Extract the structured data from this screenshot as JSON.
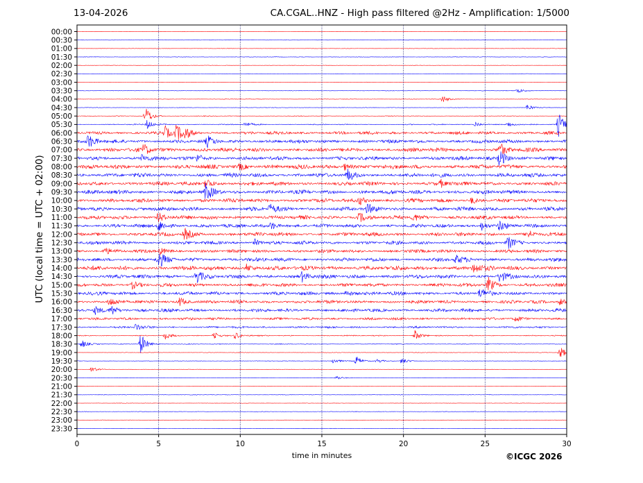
{
  "header": {
    "date": "13-04-2026",
    "title": "CA.CGAL..HNZ - High pass filtered @2Hz - Amplification: 1/5000"
  },
  "footer": {
    "copyright": "©ICGC 2026"
  },
  "chart_data": {
    "type": "line",
    "xlabel": "time in minutes",
    "ylabel": "UTC (local time = UTC + 02:00)",
    "xlim": [
      0,
      30
    ],
    "xticks": [
      "0",
      "5",
      "10",
      "15",
      "20",
      "25",
      "30"
    ],
    "grid": "vertical dotted lines at 5-minute ticks",
    "row_labels": [
      "00:00",
      "00:30",
      "01:00",
      "01:30",
      "02:00",
      "02:30",
      "03:00",
      "03:30",
      "04:00",
      "04:30",
      "05:00",
      "05:30",
      "06:00",
      "06:30",
      "07:00",
      "07:30",
      "08:00",
      "08:30",
      "09:00",
      "09:30",
      "10:00",
      "10:30",
      "11:00",
      "11:30",
      "12:00",
      "12:30",
      "13:00",
      "13:30",
      "14:00",
      "14:30",
      "15:00",
      "15:30",
      "16:00",
      "16:30",
      "17:00",
      "17:30",
      "18:00",
      "18:30",
      "19:00",
      "19:30",
      "20:00",
      "20:30",
      "21:00",
      "21:30",
      "22:00",
      "22:30",
      "23:00",
      "23:30"
    ],
    "trace_colors": [
      "#ff0000",
      "#0000ff"
    ],
    "noise_level": [
      0.3,
      0.3,
      0.3,
      0.4,
      0.3,
      0.3,
      0.3,
      0.4,
      0.4,
      0.4,
      0.5,
      0.8,
      2.5,
      2.8,
      3.2,
      3.0,
      3.4,
      3.2,
      3.0,
      3.2,
      3.0,
      3.2,
      3.0,
      2.8,
      3.0,
      2.8,
      2.6,
      3.0,
      3.4,
      3.0,
      2.8,
      2.8,
      2.6,
      2.6,
      2.0,
      1.6,
      0.8,
      0.6,
      0.4,
      0.4,
      0.3,
      0.3,
      0.3,
      0.4,
      0.3,
      0.4,
      0.3,
      0.3
    ],
    "events": [
      {
        "row": 8,
        "minute": 22.4,
        "amp": 5
      },
      {
        "row": 7,
        "minute": 27.0,
        "amp": 4
      },
      {
        "row": 9,
        "minute": 27.6,
        "amp": 5
      },
      {
        "row": 10,
        "minute": 4.2,
        "amp": 14
      },
      {
        "row": 11,
        "minute": 4.3,
        "amp": 7
      },
      {
        "row": 11,
        "minute": 10.3,
        "amp": 4
      },
      {
        "row": 11,
        "minute": 24.4,
        "amp": 4
      },
      {
        "row": 11,
        "minute": 26.4,
        "amp": 4
      },
      {
        "row": 11,
        "minute": 29.5,
        "amp": 18
      },
      {
        "row": 12,
        "minute": 5.4,
        "amp": 9
      },
      {
        "row": 12,
        "minute": 6.1,
        "amp": 12
      },
      {
        "row": 12,
        "minute": 6.6,
        "amp": 7
      },
      {
        "row": 13,
        "minute": 0.7,
        "amp": 10
      },
      {
        "row": 13,
        "minute": 8.0,
        "amp": 7
      },
      {
        "row": 14,
        "minute": 4.1,
        "amp": 8
      },
      {
        "row": 14,
        "minute": 25.9,
        "amp": 10
      },
      {
        "row": 15,
        "minute": 4.0,
        "amp": 6
      },
      {
        "row": 15,
        "minute": 7.4,
        "amp": 6
      },
      {
        "row": 15,
        "minute": 25.9,
        "amp": 14
      },
      {
        "row": 16,
        "minute": 10.0,
        "amp": 5
      },
      {
        "row": 16,
        "minute": 16.4,
        "amp": 5
      },
      {
        "row": 17,
        "minute": 16.6,
        "amp": 8
      },
      {
        "row": 18,
        "minute": 7.9,
        "amp": 9
      },
      {
        "row": 18,
        "minute": 22.3,
        "amp": 5
      },
      {
        "row": 19,
        "minute": 7.9,
        "amp": 12
      },
      {
        "row": 20,
        "minute": 17.3,
        "amp": 6
      },
      {
        "row": 20,
        "minute": 24.2,
        "amp": 5
      },
      {
        "row": 21,
        "minute": 11.8,
        "amp": 7
      },
      {
        "row": 21,
        "minute": 17.8,
        "amp": 6
      },
      {
        "row": 22,
        "minute": 5.0,
        "amp": 8
      },
      {
        "row": 22,
        "minute": 17.3,
        "amp": 7
      },
      {
        "row": 22,
        "minute": 20.6,
        "amp": 5
      },
      {
        "row": 23,
        "minute": 5.0,
        "amp": 9
      },
      {
        "row": 23,
        "minute": 11.9,
        "amp": 6
      },
      {
        "row": 23,
        "minute": 24.8,
        "amp": 6
      },
      {
        "row": 23,
        "minute": 25.9,
        "amp": 7
      },
      {
        "row": 24,
        "minute": 6.6,
        "amp": 8
      },
      {
        "row": 24,
        "minute": 27.6,
        "amp": 6
      },
      {
        "row": 25,
        "minute": 26.4,
        "amp": 9
      },
      {
        "row": 25,
        "minute": 10.9,
        "amp": 5
      },
      {
        "row": 26,
        "minute": 5.1,
        "amp": 5
      },
      {
        "row": 26,
        "minute": 1.7,
        "amp": 5
      },
      {
        "row": 27,
        "minute": 5.0,
        "amp": 12
      },
      {
        "row": 27,
        "minute": 23.2,
        "amp": 6
      },
      {
        "row": 28,
        "minute": 10.4,
        "amp": 6
      },
      {
        "row": 28,
        "minute": 24.3,
        "amp": 8
      },
      {
        "row": 29,
        "minute": 7.3,
        "amp": 11
      },
      {
        "row": 29,
        "minute": 13.8,
        "amp": 7
      },
      {
        "row": 29,
        "minute": 25.9,
        "amp": 8
      },
      {
        "row": 30,
        "minute": 25.2,
        "amp": 11
      },
      {
        "row": 30,
        "minute": 3.4,
        "amp": 5
      },
      {
        "row": 31,
        "minute": 24.7,
        "amp": 7
      },
      {
        "row": 31,
        "minute": 16.5,
        "amp": 5
      },
      {
        "row": 32,
        "minute": 2.0,
        "amp": 6
      },
      {
        "row": 32,
        "minute": 6.3,
        "amp": 7
      },
      {
        "row": 32,
        "minute": 29.6,
        "amp": 5
      },
      {
        "row": 33,
        "minute": 1.1,
        "amp": 6
      },
      {
        "row": 33,
        "minute": 2.1,
        "amp": 8
      },
      {
        "row": 34,
        "minute": 26.9,
        "amp": 4
      },
      {
        "row": 35,
        "minute": 3.6,
        "amp": 5
      },
      {
        "row": 36,
        "minute": 5.4,
        "amp": 5
      },
      {
        "row": 36,
        "minute": 8.4,
        "amp": 5
      },
      {
        "row": 36,
        "minute": 9.7,
        "amp": 5
      },
      {
        "row": 36,
        "minute": 20.7,
        "amp": 8
      },
      {
        "row": 37,
        "minute": 0.3,
        "amp": 6
      },
      {
        "row": 37,
        "minute": 3.9,
        "amp": 16
      },
      {
        "row": 38,
        "minute": 29.6,
        "amp": 9
      },
      {
        "row": 39,
        "minute": 15.7,
        "amp": 4
      },
      {
        "row": 39,
        "minute": 17.1,
        "amp": 7
      },
      {
        "row": 39,
        "minute": 18.4,
        "amp": 3
      },
      {
        "row": 39,
        "minute": 19.9,
        "amp": 5
      },
      {
        "row": 40,
        "minute": 0.9,
        "amp": 4
      },
      {
        "row": 41,
        "minute": 15.9,
        "amp": 3
      }
    ]
  }
}
